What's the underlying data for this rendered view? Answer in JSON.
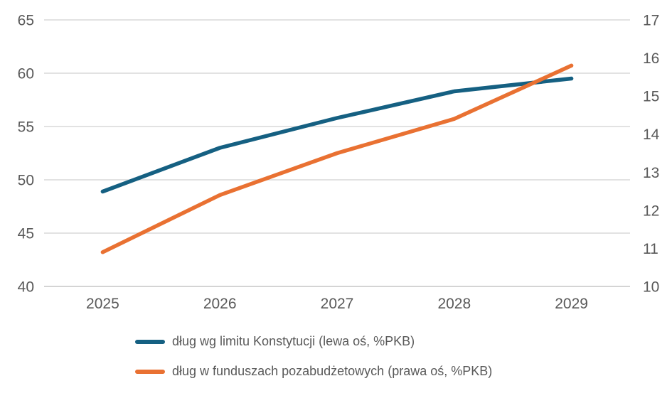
{
  "chart_data": {
    "type": "line",
    "categories": [
      "2025",
      "2026",
      "2027",
      "2028",
      "2029"
    ],
    "series": [
      {
        "name": "dług wg limitu Konstytucji (lewa oś, %PKB)",
        "axis": "left",
        "color": "#156082",
        "values": [
          48.9,
          53.0,
          55.8,
          58.3,
          59.5
        ]
      },
      {
        "name": "dług w funduszach pozabudżetowych (prawa oś, %PKB)",
        "axis": "right",
        "color": "#E97132",
        "values": [
          10.9,
          12.4,
          13.5,
          14.4,
          15.8
        ]
      }
    ],
    "axes": {
      "left": {
        "min": 40,
        "max": 65,
        "ticks": [
          40,
          45,
          50,
          55,
          60,
          65
        ]
      },
      "right": {
        "min": 10,
        "max": 17,
        "ticks": [
          10,
          11,
          12,
          13,
          14,
          15,
          16,
          17
        ]
      }
    },
    "grid": "horizontal",
    "legend_position": "bottom-left",
    "title": "",
    "xlabel": "",
    "ylabel_left": "",
    "ylabel_right": ""
  },
  "colors": {
    "gridline": "#D9D9D9",
    "axis_line": "#C6C6C6",
    "tick_text": "#595959",
    "background": "#FFFFFF"
  }
}
